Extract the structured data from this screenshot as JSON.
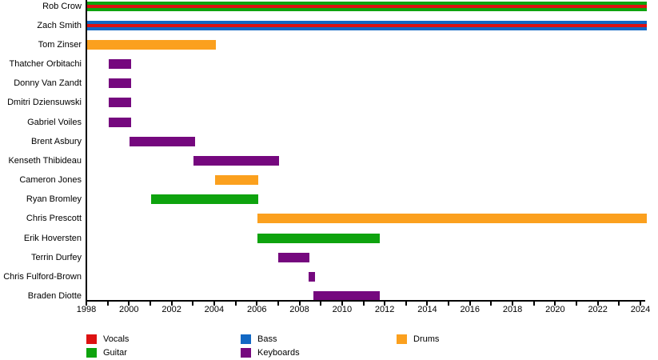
{
  "chart_data": {
    "type": "timeline",
    "title": "",
    "grid": false,
    "background_color": "#ffffff",
    "axis_color": "#000000",
    "x_axis": {
      "start": 1998,
      "end": 2024.3,
      "tick_interval_years": 1,
      "label_interval_years": 2,
      "tick_labels": [
        "1998",
        "2000",
        "2002",
        "2004",
        "2006",
        "2008",
        "2010",
        "2012",
        "2014",
        "2016",
        "2018",
        "2020",
        "2022",
        "2024"
      ]
    },
    "role_colors": {
      "Vocals": "#dd1111",
      "Guitar": "#0ea30e",
      "Bass": "#1268c4",
      "Keyboards": "#75087e",
      "Drums": "#fba01e"
    },
    "legend": [
      {
        "label": "Vocals",
        "color": "#dd1111"
      },
      {
        "label": "Guitar",
        "color": "#0ea30e"
      },
      {
        "label": "Bass",
        "color": "#1268c4"
      },
      {
        "label": "Keyboards",
        "color": "#75087e"
      },
      {
        "label": "Drums",
        "color": "#fba01e"
      }
    ],
    "legend_position": "bottom",
    "members": [
      {
        "name": "Rob Crow",
        "roles": [
          "Guitar",
          "Vocals"
        ],
        "start": 1998,
        "end": 2024.3,
        "ongoing": true
      },
      {
        "name": "Zach Smith",
        "roles": [
          "Bass",
          "Vocals"
        ],
        "start": 1998,
        "end": 2024.3,
        "ongoing": true
      },
      {
        "name": "Tom Zinser",
        "roles": [
          "Drums"
        ],
        "start": 1998,
        "end": 2004.08,
        "ongoing": false
      },
      {
        "name": "Thatcher Orbitachi",
        "roles": [
          "Keyboards"
        ],
        "start": 1999.05,
        "end": 2000.1,
        "ongoing": false
      },
      {
        "name": "Donny Van Zandt",
        "roles": [
          "Keyboards"
        ],
        "start": 1999.05,
        "end": 2000.1,
        "ongoing": false
      },
      {
        "name": "Dmitri Dziensuwski",
        "roles": [
          "Keyboards"
        ],
        "start": 1999.05,
        "end": 2000.1,
        "ongoing": false
      },
      {
        "name": "Gabriel Voiles",
        "roles": [
          "Keyboards"
        ],
        "start": 1999.05,
        "end": 2000.1,
        "ongoing": false
      },
      {
        "name": "Brent Asbury",
        "roles": [
          "Keyboards"
        ],
        "start": 2000.03,
        "end": 2003.1,
        "ongoing": false
      },
      {
        "name": "Kenseth Thibideau",
        "roles": [
          "Keyboards"
        ],
        "start": 2003.03,
        "end": 2007.04,
        "ongoing": false
      },
      {
        "name": "Cameron Jones",
        "roles": [
          "Drums"
        ],
        "start": 2004.04,
        "end": 2006.07,
        "ongoing": false
      },
      {
        "name": "Ryan Bromley",
        "roles": [
          "Guitar"
        ],
        "start": 2001.04,
        "end": 2006.07,
        "ongoing": false
      },
      {
        "name": "Chris Prescott",
        "roles": [
          "Drums"
        ],
        "start": 2006.03,
        "end": 2024.3,
        "ongoing": true
      },
      {
        "name": "Erik Hoversten",
        "roles": [
          "Guitar"
        ],
        "start": 2006.03,
        "end": 2011.77,
        "ongoing": false
      },
      {
        "name": "Terrin Durfey",
        "roles": [
          "Keyboards"
        ],
        "start": 2007.0,
        "end": 2008.47,
        "ongoing": false
      },
      {
        "name": "Chris Fulford-Brown",
        "roles": [
          "Keyboards"
        ],
        "start": 2008.43,
        "end": 2008.73,
        "ongoing": false
      },
      {
        "name": "Braden Diotte",
        "roles": [
          "Keyboards"
        ],
        "start": 2008.65,
        "end": 2011.77,
        "ongoing": false
      }
    ]
  }
}
